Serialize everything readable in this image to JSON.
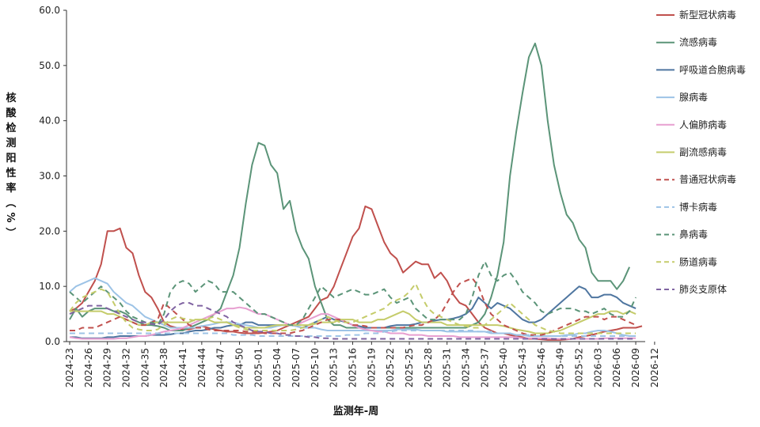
{
  "chart_data": {
    "type": "line",
    "xlabel": "监测年-周",
    "ylabel": "核酸检测阳性率（%）",
    "ylim": [
      0,
      60
    ],
    "yticks": [
      "0.0",
      "10.0",
      "20.0",
      "30.0",
      "40.0",
      "50.0",
      "60.0"
    ],
    "grid": false,
    "legend_position": "right",
    "x_start": "2024-23",
    "x_end": "2026-12",
    "xtick_labels": [
      "2024-23",
      "2024-26",
      "2024-29",
      "2024-32",
      "2024-35",
      "2024-38",
      "2024-41",
      "2024-44",
      "2024-47",
      "2024-50",
      "2025-01",
      "2025-04",
      "2025-07",
      "2025-10",
      "2025-13",
      "2025-16",
      "2025-19",
      "2025-22",
      "2025-25",
      "2025-28",
      "2025-31",
      "2025-34",
      "2025-37",
      "2025-40",
      "2025-43",
      "2025-46",
      "2025-49",
      "2025-52",
      "2026-03",
      "2026-06",
      "2026-09",
      "2026-12"
    ],
    "series": [
      {
        "name": "新型冠状病毒",
        "color": "#c0504d",
        "dashed": false,
        "values": [
          5.5,
          6,
          7,
          9,
          11,
          14,
          20,
          20,
          20.5,
          17,
          16,
          12,
          9,
          8,
          6,
          3.5,
          2.8,
          2.5,
          2.2,
          2.2,
          2.5,
          2.8,
          2.5,
          2.2,
          2,
          1.8,
          1.8,
          1.6,
          1.5,
          1.5,
          1.5,
          1.6,
          1.8,
          2,
          2.5,
          3,
          3.5,
          4,
          4.5,
          6,
          7.5,
          8,
          10,
          13,
          16,
          19,
          20.5,
          24.5,
          24,
          21,
          18,
          16,
          15,
          12.5,
          13.5,
          14.5,
          14,
          14,
          11.5,
          12.5,
          11,
          8.5,
          7,
          6.5,
          5,
          3.5,
          2.5,
          2,
          1.5,
          1.5,
          1.2,
          1,
          0.8,
          0.5,
          0.5,
          0.4,
          0.3,
          0.3,
          0.3,
          0.4,
          0.5,
          0.8,
          1,
          1.2,
          1.5,
          1.8,
          2,
          2.2,
          2.5,
          2.5,
          2.5,
          2.8
        ]
      },
      {
        "name": "流感病毒",
        "color": "#5b9478",
        "dashed": false,
        "values": [
          4,
          6,
          4.5,
          5.5,
          6,
          6,
          6,
          5.5,
          5.5,
          5,
          4,
          3.5,
          3,
          3,
          2.8,
          2.5,
          2,
          2,
          2,
          2.5,
          3,
          3.5,
          4,
          5,
          6,
          9,
          12,
          17,
          25,
          32,
          36,
          35.5,
          32,
          30.5,
          24,
          25.5,
          20,
          17,
          15,
          10,
          7,
          4,
          3,
          3,
          2.5,
          2.5,
          2.5,
          2.5,
          2.5,
          2.5,
          2.5,
          2.5,
          2.5,
          2.5,
          2.5,
          2.5,
          2.5,
          2.5,
          2.5,
          2.5,
          2.5,
          2.5,
          2.5,
          2.5,
          3,
          3.5,
          5,
          8,
          12,
          18,
          30,
          38,
          45,
          51.5,
          54,
          50,
          40,
          32,
          27,
          23,
          21.5,
          18.5,
          17,
          12.5,
          11,
          11,
          11,
          9.5,
          11,
          13.5
        ]
      },
      {
        "name": "呼吸道合胞病毒",
        "color": "#4f76a0",
        "dashed": false,
        "values": [
          0.8,
          0.8,
          0.6,
          0.6,
          0.6,
          0.6,
          0.8,
          0.8,
          1,
          1,
          1,
          1,
          1,
          1.2,
          1.2,
          1.2,
          1.3,
          1.5,
          1.5,
          1.8,
          2,
          2,
          2.2,
          2.5,
          2.5,
          2.8,
          3,
          3,
          3.5,
          3.5,
          3,
          3,
          3,
          3,
          3,
          3,
          2.8,
          2.5,
          3,
          3.5,
          4,
          4.5,
          4,
          3.8,
          3.5,
          3,
          2.8,
          2.5,
          2.5,
          2.5,
          2.5,
          2.8,
          3,
          3,
          3,
          3.2,
          3.5,
          3.5,
          3.8,
          4,
          4,
          4.2,
          4.5,
          5,
          6,
          8,
          7,
          6,
          7,
          6.5,
          6,
          5,
          4,
          3.5,
          3.5,
          4,
          5,
          6,
          7,
          8,
          9,
          10,
          9.5,
          8,
          8,
          8.5,
          8.5,
          8,
          7,
          6.5,
          6
        ]
      },
      {
        "name": "腺病毒",
        "color": "#9dc3e6",
        "dashed": false,
        "values": [
          9,
          10,
          10.5,
          11,
          11.5,
          11,
          10.5,
          9,
          8,
          7,
          6.5,
          5.5,
          4.5,
          4,
          3.5,
          3,
          2.5,
          2.5,
          2.5,
          2.5,
          2.5,
          2.8,
          3,
          3.2,
          3.5,
          3.5,
          3.5,
          3.2,
          3,
          2.8,
          2.5,
          2.5,
          2.5,
          2.8,
          3,
          3,
          2.8,
          2.5,
          2.5,
          2.5,
          2.2,
          2,
          2,
          2,
          2,
          2,
          2,
          2,
          2,
          2,
          2,
          2,
          2.2,
          2.2,
          2.2,
          2.2,
          2,
          2,
          2,
          2,
          1.8,
          1.8,
          1.8,
          1.8,
          1.8,
          1.8,
          1.8,
          1.5,
          1.5,
          1.5,
          1.5,
          1.2,
          1.2,
          1,
          1,
          1,
          1,
          1,
          1,
          1.2,
          1.2,
          1.5,
          1.5,
          1.8,
          2,
          2,
          1.8,
          1.5,
          1.2,
          1,
          1
        ]
      },
      {
        "name": "人偏肺病毒",
        "color": "#e79fd0",
        "dashed": false,
        "values": [
          0.8,
          0.6,
          0.5,
          0.5,
          0.5,
          0.5,
          0.5,
          0.5,
          0.6,
          0.6,
          0.8,
          1,
          1,
          1.2,
          1.5,
          1.8,
          2,
          2.2,
          2.5,
          3,
          3.5,
          4,
          4.5,
          5,
          5.5,
          6,
          6,
          6.2,
          6,
          5.5,
          5,
          5,
          4.5,
          4,
          3.5,
          3,
          3,
          3.5,
          4,
          4.5,
          5,
          5,
          4.5,
          4,
          3.5,
          3,
          2.5,
          2.2,
          2,
          1.8,
          1.8,
          1.5,
          1.5,
          1.5,
          1.2,
          1.2,
          1.2,
          1,
          1,
          1,
          1,
          1,
          0.8,
          0.8,
          0.8,
          0.8,
          0.8,
          0.8,
          0.8,
          0.8,
          0.8,
          0.8,
          0.6,
          0.6,
          0.6,
          0.6,
          0.6,
          0.5,
          0.5,
          0.5,
          0.5,
          0.5,
          0.5,
          0.5,
          0.5,
          0.6,
          0.6,
          0.6,
          0.6,
          0.6,
          0.6
        ]
      },
      {
        "name": "副流感病毒",
        "color": "#c5cc6b",
        "dashed": false,
        "values": [
          5.5,
          5.5,
          5.5,
          5.5,
          5.5,
          5.5,
          5,
          5,
          4.5,
          4,
          3.5,
          3,
          3,
          3.5,
          3.5,
          3.5,
          3.5,
          3.5,
          3.5,
          3.5,
          4,
          4,
          4,
          3.5,
          3.5,
          3.5,
          3,
          2.8,
          2.5,
          2.5,
          2.5,
          2.5,
          2.8,
          3,
          3,
          3,
          3,
          3,
          3,
          3.2,
          3.5,
          3.5,
          3.5,
          4,
          4,
          4,
          3.5,
          3.5,
          3.5,
          4,
          4,
          4.5,
          5,
          5.5,
          5,
          4,
          3.5,
          3.5,
          3.5,
          3.5,
          3,
          3,
          3,
          3,
          3,
          3,
          3,
          3,
          3,
          2.8,
          2.5,
          2.2,
          2,
          1.8,
          1.5,
          1.5,
          1.5,
          1.8,
          2,
          2.5,
          3,
          3.5,
          4,
          4.5,
          5,
          5,
          5.5,
          5.5,
          5,
          5.5,
          5
        ]
      },
      {
        "name": "普通冠状病毒",
        "color": "#c0504d",
        "dashed": true,
        "values": [
          2,
          2,
          2.5,
          2.5,
          2.5,
          3,
          3.5,
          4,
          4.5,
          4,
          3.5,
          3,
          3,
          3.5,
          4,
          7,
          6,
          5,
          4,
          3,
          2.5,
          2.5,
          2.2,
          2,
          2,
          2,
          2,
          2,
          1.8,
          1.8,
          1.8,
          1.5,
          1.5,
          1.5,
          1.5,
          1.5,
          1.8,
          2,
          2.5,
          3,
          3.5,
          4,
          4,
          4,
          3.5,
          3,
          3,
          2.8,
          2.5,
          2.5,
          2.5,
          2.5,
          2.5,
          2.5,
          2.8,
          3,
          3,
          3.5,
          4,
          5,
          7,
          9,
          10.5,
          11,
          11.5,
          10,
          7,
          5,
          4,
          3,
          2.5,
          2,
          1.5,
          1.2,
          1.2,
          1.2,
          1.5,
          2,
          2.5,
          3,
          3.5,
          4,
          4.5,
          4.5,
          4.5,
          4,
          4.5,
          4.5,
          4,
          3.5,
          3
        ]
      },
      {
        "name": "博卡病毒",
        "color": "#9dc3e6",
        "dashed": true,
        "values": [
          1.5,
          1.5,
          1.5,
          1.5,
          1.5,
          1.5,
          1.5,
          1.5,
          1.5,
          1.5,
          1.5,
          1.5,
          1.5,
          1.5,
          1.5,
          1.5,
          1.5,
          1.5,
          1.5,
          1.5,
          1.5,
          1.5,
          1.5,
          1.5,
          1.5,
          1.5,
          1.2,
          1.2,
          1.2,
          1.2,
          1,
          1,
          1,
          1,
          1,
          1,
          1,
          1,
          1,
          1,
          1,
          1,
          1,
          1,
          1.2,
          1.2,
          1.2,
          1.5,
          1.5,
          1.5,
          1.8,
          1.8,
          2,
          2,
          2,
          2,
          2,
          2,
          2,
          2,
          2,
          2,
          2,
          2,
          2,
          1.8,
          1.8,
          1.8,
          1.5,
          1.5,
          1.5,
          1.2,
          1.2,
          1.2,
          1,
          1,
          1,
          1,
          1,
          1,
          1,
          1,
          1,
          1,
          1,
          1,
          1,
          1,
          1,
          1,
          1
        ]
      },
      {
        "name": "鼻病毒",
        "color": "#5b9478",
        "dashed": true,
        "values": [
          9,
          8,
          7,
          8,
          9,
          10,
          9,
          8,
          7,
          5.5,
          4.5,
          4,
          3.5,
          3.5,
          3,
          5,
          9,
          10.5,
          11,
          10.5,
          9,
          10,
          11,
          10.5,
          9,
          9,
          9,
          8,
          7,
          6,
          5,
          5,
          4.5,
          4,
          3.5,
          3,
          3,
          4,
          6,
          8,
          10,
          9,
          8,
          8.5,
          9,
          9.5,
          9,
          8.5,
          8.5,
          9,
          9.5,
          8,
          7,
          7.5,
          8,
          6,
          5,
          4,
          4,
          4,
          4,
          4,
          4,
          5,
          8,
          12,
          14.5,
          12,
          11,
          12,
          12.5,
          11,
          9,
          8,
          7,
          5.5,
          5,
          5.5,
          6,
          6,
          6,
          5.5,
          5.5,
          5,
          5.5,
          6,
          5,
          4.5,
          4.5,
          5.5,
          8
        ]
      },
      {
        "name": "肠道病毒",
        "color": "#c5cc6b",
        "dashed": true,
        "values": [
          5.5,
          7,
          8,
          8.5,
          9,
          9.5,
          9,
          7,
          5,
          3.5,
          2.5,
          2.2,
          2,
          2,
          2.2,
          3,
          4,
          4.5,
          4.2,
          4,
          3.8,
          4,
          4.2,
          4.5,
          4,
          3.5,
          3,
          2.5,
          2.2,
          2,
          2,
          2,
          2,
          2,
          2,
          2,
          2.2,
          2.5,
          3,
          3.5,
          4,
          4.5,
          4,
          3.5,
          3.5,
          3.5,
          4,
          4.5,
          5,
          5.5,
          6,
          7,
          7.5,
          8,
          9,
          10.5,
          8,
          6,
          5,
          4.5,
          4,
          3.5,
          3,
          2.8,
          2.5,
          2.5,
          3,
          4,
          5,
          6,
          7,
          6,
          5,
          4,
          3,
          2.5,
          2,
          1.8,
          1.5,
          1.5,
          1.5,
          1.5,
          1.5,
          1.5,
          1.5,
          1.5,
          1.5,
          1.5,
          1.5,
          1.5,
          1.5
        ]
      },
      {
        "name": "肺炎支原体",
        "color": "#8064a2",
        "dashed": true,
        "values": [
          5,
          5.5,
          6,
          6.5,
          6.5,
          6.5,
          6,
          5.5,
          5,
          4.5,
          4,
          3.5,
          3.5,
          3.2,
          3,
          4,
          5.5,
          6.5,
          7,
          7,
          6.5,
          6.5,
          6,
          5.5,
          5,
          4.5,
          3.5,
          3,
          2.5,
          2,
          1.8,
          1.8,
          1.5,
          1.5,
          1.2,
          1.2,
          1,
          1,
          0.8,
          0.8,
          0.6,
          0.6,
          0.5,
          0.5,
          0.5,
          0.5,
          0.5,
          0.5,
          0.5,
          0.5,
          0.5,
          0.5,
          0.5,
          0.5,
          0.5,
          0.5,
          0.5,
          0.5,
          0.5,
          0.5,
          0.5,
          0.5,
          0.5,
          0.5,
          0.5,
          0.5,
          0.5,
          0.5,
          0.5,
          0.5,
          0.5,
          0.5,
          0.5,
          0.5,
          0.5,
          0.5,
          0.5,
          0.5,
          0.5,
          0.5,
          0.5,
          0.5,
          0.5,
          0.5,
          0.5,
          0.5,
          0.5,
          0.5,
          0.5,
          0.5,
          0.5
        ]
      }
    ]
  }
}
